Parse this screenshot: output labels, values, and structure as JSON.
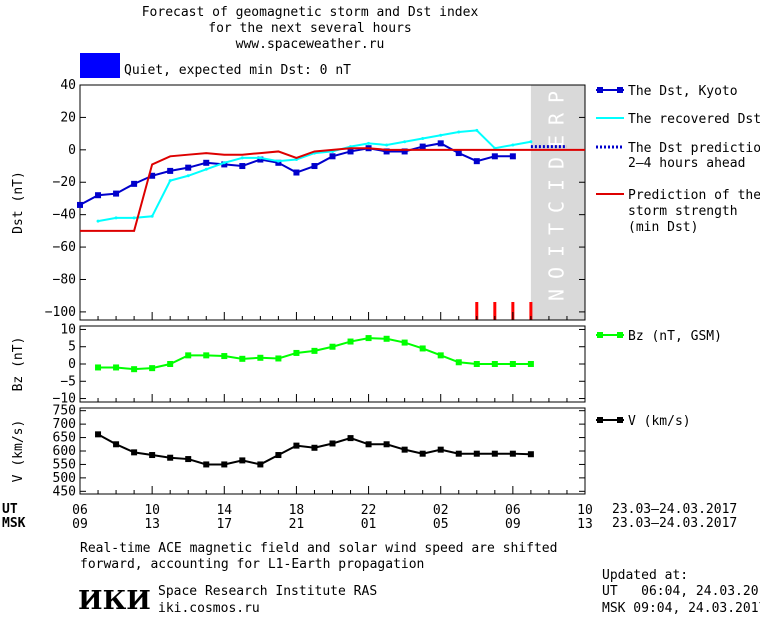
{
  "header": {
    "line1": "Forecast of geomagnetic storm and Dst index",
    "line2": "for the next several hours",
    "line3": "www.spaceweather.ru",
    "status_text": "Quiet, expected min Dst: 0 nT",
    "status_color": "#0000ff"
  },
  "colors": {
    "dst_kyoto": "#0000cc",
    "recovered": "#00ffff",
    "prediction_line": "#0000cc",
    "storm_strength": "#dd0000",
    "bz": "#00ff00",
    "v": "#000000",
    "prediction_band": "#d9d9d9",
    "tick_marks": "#ff0000"
  },
  "prediction_band_label": "PREDICTION",
  "legend": {
    "dst_kyoto": "The Dst, Kyoto",
    "recovered": "The recovered Dst",
    "dst_prediction": [
      "The Dst prediction",
      "2–4 hours ahead"
    ],
    "storm_strength": [
      "Prediction of the",
      "storm strength",
      "(min Dst)"
    ],
    "bz": "Bz (nT, GSM)",
    "v": "V (km/s)"
  },
  "time_axis": {
    "ut_label": "UT",
    "msk_label": "MSK",
    "ut_ticks": [
      "06",
      "10",
      "14",
      "18",
      "22",
      "02",
      "06",
      "10"
    ],
    "msk_ticks": [
      "09",
      "13",
      "17",
      "21",
      "01",
      "05",
      "09",
      "13"
    ],
    "date_range": "23.03–24.03.2017"
  },
  "footer": {
    "note_line1": "Real-time ACE magnetic field and solar wind speed are shifted",
    "note_line2": "forward, accounting for L1-Earth propagation",
    "logo_text": "ИКИ",
    "institute": "Space Research Institute RAS",
    "website": "iki.cosmos.ru",
    "updated_label": "Updated at:",
    "updated_ut": "UT   06:04, 24.03.2017",
    "updated_msk": "MSK 09:04, 24.03.2017"
  },
  "chart_data": [
    {
      "type": "line",
      "ylabel": "Dst (nT)",
      "ylim": [
        -105,
        40
      ],
      "yticks": [
        40,
        20,
        0,
        -20,
        -40,
        -60,
        -80,
        -100
      ],
      "xlim": [
        0,
        28
      ],
      "prediction_band": [
        25,
        28
      ],
      "series": [
        {
          "name": "The Dst, Kyoto",
          "x": [
            0,
            1,
            2,
            3,
            4,
            5,
            6,
            7,
            8,
            9,
            10,
            11,
            12,
            13,
            14,
            15,
            16,
            17,
            18,
            19,
            20,
            21,
            22,
            23,
            24
          ],
          "values": [
            -34,
            -28,
            -27,
            -21,
            -16,
            -13,
            -11,
            -8,
            -9,
            -10,
            -6,
            -8,
            -14,
            -10,
            -4,
            -1,
            1,
            -1,
            -1,
            2,
            4,
            -2,
            -7,
            -4,
            -4
          ]
        },
        {
          "name": "The recovered Dst",
          "x": [
            1,
            2,
            3,
            4,
            5,
            6,
            7,
            8,
            9,
            10,
            11,
            12,
            13,
            14,
            15,
            16,
            17,
            18,
            19,
            20,
            21,
            22,
            23,
            24,
            25
          ],
          "values": [
            -44,
            -42,
            -42,
            -41,
            -19,
            -16,
            -12,
            -8,
            -5,
            -5,
            -7,
            -6,
            -2,
            -1,
            2,
            4,
            3,
            5,
            7,
            9,
            11,
            12,
            1,
            3,
            5
          ]
        },
        {
          "name": "The Dst prediction 2–4 hours ahead",
          "x": [
            25,
            26,
            27
          ],
          "values": [
            2,
            2,
            2
          ]
        },
        {
          "name": "Prediction of the storm strength (min Dst)",
          "x": [
            0,
            3,
            4,
            5,
            6,
            7,
            8,
            9,
            10,
            11,
            12,
            13,
            14,
            15,
            16,
            17,
            18,
            19,
            20,
            21,
            22,
            23,
            24,
            25,
            28
          ],
          "values": [
            -50,
            -50,
            -9,
            -4,
            -3,
            -2,
            -3,
            -3,
            -2,
            -1,
            -5,
            -1,
            0,
            1,
            1,
            0,
            0,
            0,
            0,
            0,
            0,
            0,
            0,
            0,
            0
          ]
        }
      ],
      "red_tick_marks_x": [
        22,
        23,
        24,
        25
      ]
    },
    {
      "type": "line",
      "ylabel": "Bz (nT)",
      "ylim": [
        -11,
        11
      ],
      "yticks": [
        10,
        5,
        0,
        -5,
        -10
      ],
      "xlim": [
        0,
        28
      ],
      "series": [
        {
          "name": "Bz (nT, GSM)",
          "x": [
            1,
            2,
            3,
            4,
            5,
            6,
            7,
            8,
            9,
            10,
            11,
            12,
            13,
            14,
            15,
            16,
            17,
            18,
            19,
            20,
            21,
            22,
            23,
            24,
            25
          ],
          "values": [
            -1,
            -1,
            -1.5,
            -1.2,
            0,
            2.5,
            2.5,
            2.3,
            1.5,
            1.8,
            1.6,
            3.2,
            3.8,
            5,
            6.5,
            7.5,
            7.3,
            6.2,
            4.5,
            2.5,
            0.5,
            0,
            0,
            0,
            0
          ]
        }
      ]
    },
    {
      "type": "line",
      "ylabel": "V (km/s)",
      "ylim": [
        440,
        760
      ],
      "yticks": [
        750,
        700,
        650,
        600,
        550,
        500,
        450
      ],
      "xlim": [
        0,
        28
      ],
      "series": [
        {
          "name": "V (km/s)",
          "x": [
            1,
            2,
            3,
            4,
            5,
            6,
            7,
            8,
            9,
            10,
            11,
            12,
            13,
            14,
            15,
            16,
            17,
            18,
            19,
            20,
            21,
            22,
            23,
            24,
            25
          ],
          "values": [
            662,
            625,
            595,
            585,
            575,
            570,
            550,
            550,
            565,
            550,
            585,
            620,
            612,
            628,
            648,
            625,
            625,
            605,
            590,
            605,
            590,
            590,
            590,
            590,
            588
          ]
        }
      ]
    }
  ]
}
